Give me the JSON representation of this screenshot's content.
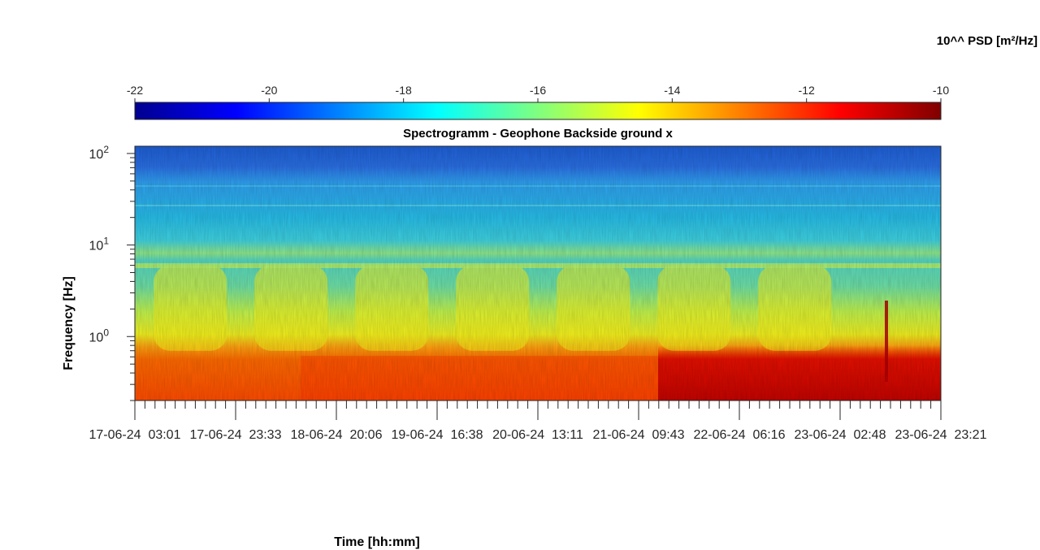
{
  "chart_data": {
    "type": "heatmap",
    "title": "Spectrogramm - Geophone Backside ground x",
    "xlabel": "Time [hh:mm]",
    "ylabel": "Frequency [Hz]",
    "colorbar_label": "10^^ PSD [m²/Hz]",
    "colormap": "jet",
    "y_scale": "log",
    "ylim": [
      0.2,
      120
    ],
    "y_ticks": [
      {
        "value": 1,
        "base": "10",
        "exp": "0"
      },
      {
        "value": 10,
        "base": "10",
        "exp": "1"
      },
      {
        "value": 100,
        "base": "10",
        "exp": "2"
      }
    ],
    "colorbar_ticks": [
      "-22",
      "-20",
      "-18",
      "-16",
      "-14",
      "-12",
      "-10"
    ],
    "clim": [
      -22,
      -10
    ],
    "x_range": [
      "17-06-24 03:01",
      "23-06-24 23:21"
    ],
    "x_tick_labels": [
      "17-06-24  03:01",
      "17-06-24  23:33",
      "18-06-24  20:06",
      "19-06-24  16:38",
      "20-06-24  13:11",
      "21-06-24  09:43",
      "22-06-24  06:16",
      "23-06-24  02:48",
      "23-06-24  23:21"
    ],
    "approx_log10_psd_profile": [
      {
        "frequency_hz": 100,
        "log10_psd": -20.5
      },
      {
        "frequency_hz": 50,
        "log10_psd": -19.5
      },
      {
        "frequency_hz": 20,
        "log10_psd": -18.5
      },
      {
        "frequency_hz": 10,
        "log10_psd": -17.8
      },
      {
        "frequency_hz": 6,
        "log10_psd": -16.5
      },
      {
        "frequency_hz": 3,
        "log10_psd": -16.8
      },
      {
        "frequency_hz": 1,
        "log10_psd": -15.0
      },
      {
        "frequency_hz": 0.5,
        "log10_psd": -12.5
      },
      {
        "frequency_hz": 0.25,
        "log10_psd": -12.0
      }
    ]
  },
  "colors": {
    "background": "#ffffff",
    "axis": "#262626",
    "jet_stops": [
      "#00008f",
      "#0000ff",
      "#00ffff",
      "#ffff00",
      "#ff0000",
      "#800000"
    ]
  }
}
